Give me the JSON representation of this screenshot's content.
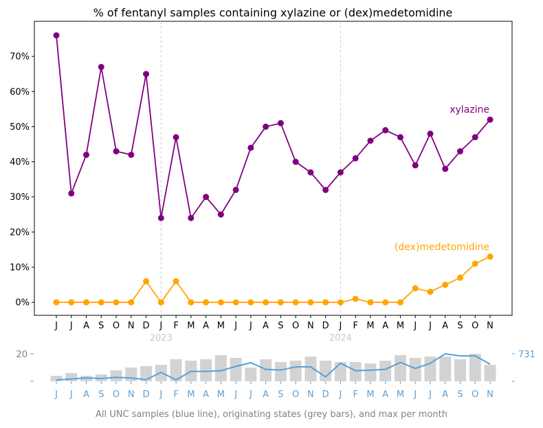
{
  "chart_data": [
    {
      "type": "line",
      "title": "% of fentanyl samples containing xylazine or (dex)medetomidine",
      "xlabel": "",
      "ylabel": "",
      "categories": [
        "J",
        "J",
        "A",
        "S",
        "O",
        "N",
        "D",
        "J",
        "F",
        "M",
        "A",
        "M",
        "J",
        "J",
        "A",
        "S",
        "O",
        "N",
        "D",
        "J",
        "F",
        "M",
        "A",
        "M",
        "J",
        "J",
        "A",
        "S",
        "O",
        "N"
      ],
      "year_markers": [
        {
          "index": 7,
          "label": "2023"
        },
        {
          "index": 19,
          "label": "2024"
        }
      ],
      "yticks": [
        0,
        10,
        20,
        30,
        40,
        50,
        60,
        70
      ],
      "ytick_labels": [
        "0%",
        "10%",
        "20%",
        "30%",
        "40%",
        "50%",
        "60%",
        "70%"
      ],
      "ylim": [
        -3.7,
        80
      ],
      "grid": false,
      "series": [
        {
          "name": "xylazine",
          "color": "#800080",
          "values": [
            76,
            31,
            42,
            67,
            43,
            42,
            65,
            24,
            47,
            24,
            30,
            25,
            32,
            44,
            50,
            51,
            40,
            37,
            32,
            37,
            41,
            46,
            49,
            47,
            39,
            48,
            38,
            43,
            47,
            52
          ]
        },
        {
          "name": "(dex)medetomidine",
          "color": "#FFA500",
          "values": [
            0,
            0,
            0,
            0,
            0,
            0,
            6,
            0,
            6,
            0,
            0,
            0,
            0,
            0,
            0,
            0,
            0,
            0,
            0,
            0,
            1,
            0,
            0,
            0,
            4,
            3,
            5,
            7,
            11,
            13
          ]
        }
      ]
    },
    {
      "type": "bar",
      "title": "All UNC samples (blue line), originating states (grey bars), and max per month",
      "categories": [
        "J",
        "J",
        "A",
        "S",
        "O",
        "N",
        "D",
        "J",
        "F",
        "M",
        "A",
        "M",
        "J",
        "J",
        "A",
        "S",
        "O",
        "N",
        "D",
        "J",
        "F",
        "M",
        "A",
        "M",
        "J",
        "J",
        "A",
        "S",
        "O",
        "N"
      ],
      "left_axis": {
        "ticks": [
          0,
          20
        ],
        "tick_labels": [
          "–",
          "20"
        ],
        "ylim": [
          0,
          20
        ]
      },
      "right_axis": {
        "ticks": [
          0,
          731
        ],
        "tick_labels": [
          "–",
          "731"
        ],
        "ylim": [
          0,
          731
        ],
        "color": "#5a9fd4"
      },
      "series": [
        {
          "name": "originating states",
          "type": "bar",
          "color": "#d3d3d3",
          "values": [
            4,
            6,
            4,
            5,
            8,
            10,
            11,
            12,
            16,
            15,
            16,
            19,
            17,
            10,
            16,
            14,
            15,
            18,
            15,
            14,
            14,
            13,
            15,
            19,
            17,
            18,
            18,
            16,
            20,
            12
          ]
        },
        {
          "name": "All UNC samples",
          "type": "line",
          "color": "#5a9fd4",
          "values": [
            37,
            61,
            90,
            73,
            104,
            90,
            43,
            238,
            37,
            262,
            262,
            281,
            397,
            494,
            317,
            300,
            383,
            383,
            120,
            479,
            282,
            294,
            318,
            503,
            342,
            479,
            731,
            677,
            677,
            455
          ]
        }
      ]
    }
  ]
}
